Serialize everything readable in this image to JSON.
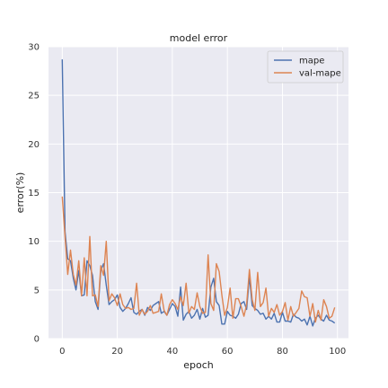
{
  "chart_data": {
    "type": "line",
    "title": "model error",
    "xlabel": "epoch",
    "ylabel": "error(%)",
    "xlim": [
      -5,
      104
    ],
    "ylim": [
      0,
      30
    ],
    "x_ticks": [
      0,
      20,
      40,
      60,
      80,
      100
    ],
    "y_ticks": [
      0,
      5,
      10,
      15,
      20,
      25,
      30
    ],
    "grid": true,
    "legend_position": "upper-right",
    "background": "#eaeaf2",
    "series": [
      {
        "name": "mape",
        "color": "#4c72b0",
        "x": [
          0,
          1,
          2,
          3,
          4,
          5,
          6,
          7,
          8,
          9,
          10,
          11,
          12,
          13,
          14,
          15,
          16,
          17,
          18,
          19,
          20,
          21,
          22,
          23,
          24,
          25,
          26,
          27,
          28,
          29,
          30,
          31,
          32,
          33,
          34,
          35,
          36,
          37,
          38,
          39,
          40,
          41,
          42,
          43,
          44,
          45,
          46,
          47,
          48,
          49,
          50,
          51,
          52,
          53,
          54,
          55,
          56,
          57,
          58,
          59,
          60,
          61,
          62,
          63,
          64,
          65,
          66,
          67,
          68,
          69,
          70,
          71,
          72,
          73,
          74,
          75,
          76,
          77,
          78,
          79,
          80,
          81,
          82,
          83,
          84,
          85,
          86,
          87,
          88,
          89,
          90,
          91,
          92,
          93,
          94,
          95,
          96,
          97,
          98,
          99
        ],
        "y": [
          28.7,
          11.0,
          8.2,
          8.0,
          6.2,
          5.0,
          7.0,
          4.4,
          4.5,
          8.0,
          7.5,
          6.5,
          3.8,
          3.0,
          7.0,
          7.7,
          5.5,
          3.5,
          3.8,
          4.0,
          4.5,
          3.2,
          2.8,
          3.1,
          3.6,
          4.2,
          2.7,
          2.5,
          2.8,
          3.0,
          2.4,
          3.2,
          2.9,
          3.4,
          3.6,
          3.8,
          2.6,
          2.8,
          2.4,
          3.0,
          3.6,
          3.3,
          2.3,
          5.3,
          1.9,
          2.5,
          2.8,
          2.1,
          2.4,
          3.0,
          2.0,
          3.1,
          2.2,
          2.4,
          5.3,
          6.2,
          3.8,
          3.4,
          1.5,
          1.5,
          2.8,
          2.4,
          2.3,
          2.1,
          2.5,
          3.6,
          3.8,
          3.0,
          6.4,
          3.4,
          3.1,
          2.9,
          2.5,
          2.6,
          2.0,
          2.3,
          2.0,
          2.6,
          1.7,
          1.7,
          2.7,
          1.8,
          1.8,
          1.7,
          2.5,
          2.2,
          2.1,
          1.8,
          2.0,
          1.4,
          2.3,
          1.3,
          2.1,
          2.4,
          2.0,
          1.8,
          2.4,
          1.9,
          1.8,
          1.6
        ]
      },
      {
        "name": "val-mape",
        "color": "#dd8452",
        "x": [
          0,
          1,
          2,
          3,
          4,
          5,
          6,
          7,
          8,
          9,
          10,
          11,
          12,
          13,
          14,
          15,
          16,
          17,
          18,
          19,
          20,
          21,
          22,
          23,
          24,
          25,
          26,
          27,
          28,
          29,
          30,
          31,
          32,
          33,
          34,
          35,
          36,
          37,
          38,
          39,
          40,
          41,
          42,
          43,
          44,
          45,
          46,
          47,
          48,
          49,
          50,
          51,
          52,
          53,
          54,
          55,
          56,
          57,
          58,
          59,
          60,
          61,
          62,
          63,
          64,
          65,
          66,
          67,
          68,
          69,
          70,
          71,
          72,
          73,
          74,
          75,
          76,
          77,
          78,
          79,
          80,
          81,
          82,
          83,
          84,
          85,
          86,
          87,
          88,
          89,
          90,
          91,
          92,
          93,
          94,
          95,
          96,
          97,
          98,
          99
        ],
        "y": [
          14.6,
          10.5,
          6.6,
          9.1,
          6.6,
          5.5,
          8.0,
          4.4,
          8.3,
          4.4,
          10.5,
          4.4,
          4.5,
          3.3,
          7.5,
          6.5,
          10.0,
          3.9,
          4.6,
          4.2,
          3.4,
          4.6,
          3.5,
          3.1,
          3.2,
          3.0,
          3.1,
          5.7,
          2.4,
          3.0,
          2.5,
          2.8,
          3.4,
          2.6,
          2.7,
          2.8,
          4.6,
          2.9,
          2.4,
          3.5,
          4.0,
          3.6,
          3.0,
          4.3,
          3.4,
          5.7,
          2.6,
          3.3,
          3.0,
          4.7,
          3.3,
          2.6,
          2.7,
          8.6,
          3.6,
          2.9,
          7.7,
          6.9,
          4.5,
          2.4,
          3.2,
          5.2,
          2.1,
          4.1,
          4.1,
          3.3,
          2.3,
          3.5,
          7.1,
          4.0,
          2.9,
          6.8,
          3.3,
          3.7,
          5.2,
          2.3,
          3.1,
          2.7,
          3.5,
          2.4,
          2.8,
          3.7,
          1.9,
          3.3,
          2.3,
          2.7,
          3.1,
          4.9,
          4.3,
          4.2,
          2.3,
          3.6,
          1.7,
          2.9,
          1.9,
          4.0,
          3.3,
          2.1,
          2.3,
          3.2
        ]
      }
    ]
  }
}
